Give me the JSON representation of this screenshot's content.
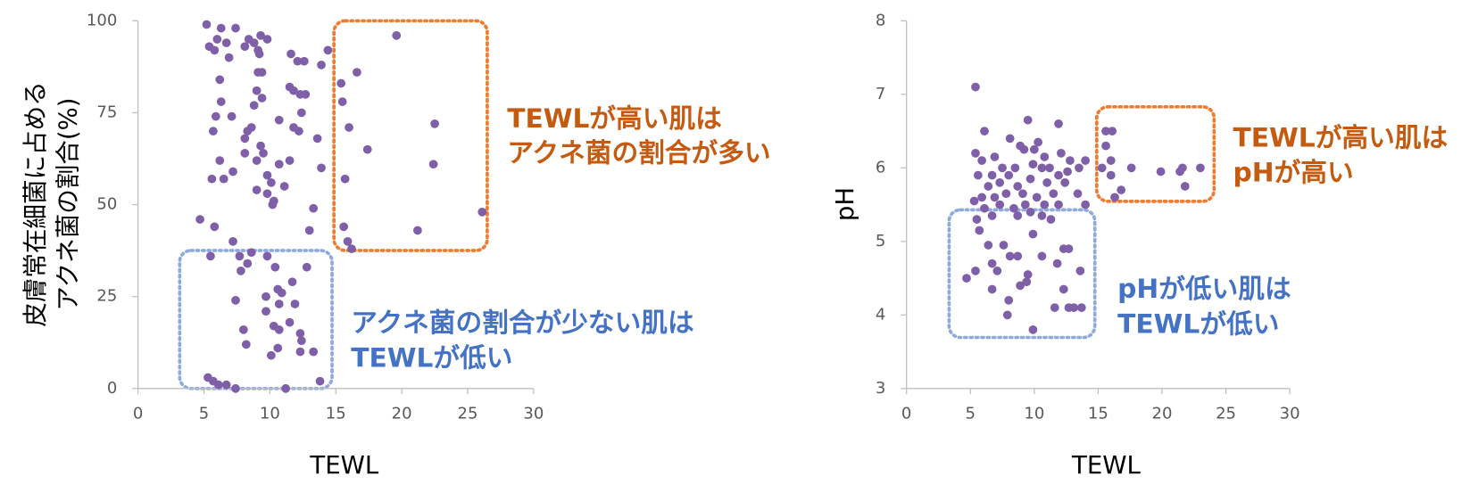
{
  "chart_data": [
    {
      "type": "scatter",
      "xlabel": "TEWL",
      "ylabel": [
        "皮膚常在細菌に占める",
        "アクネ菌の割合(%)"
      ],
      "color": "#7f5fa8",
      "xlim": [
        0,
        30
      ],
      "xticks": [
        0,
        5,
        10,
        15,
        20,
        25,
        30
      ],
      "ylim": [
        0,
        100
      ],
      "yticks": [
        0,
        25,
        50,
        75,
        100
      ],
      "x": [
        5.2,
        6.3,
        7.4,
        6.0,
        6.7,
        5.4,
        5.8,
        8.4,
        8.8,
        9.3,
        9.8,
        8.1,
        9.1,
        9.2,
        11.6,
        12.1,
        12.6,
        6.9,
        6.2,
        9.1,
        9.4,
        14.4,
        13.9,
        11.5,
        11.8,
        12.3,
        12.7,
        9.0,
        9.4,
        8.8,
        6.3,
        7.1,
        5.9,
        12.4,
        11.8,
        12.2,
        10.7,
        8.3,
        8.1,
        8.6,
        5.7,
        13.6,
        9.3,
        9.5,
        8.1,
        6.2,
        9.0,
        10.7,
        11.5,
        13.9,
        7.2,
        6.5,
        5.6,
        9.8,
        10.1,
        11.1,
        9.0,
        9.8,
        10.3,
        10.2,
        13.3,
        4.7,
        13.0,
        5.8,
        15.4,
        15.5,
        16.6,
        19.6,
        16.0,
        22.5,
        17.4,
        22.4,
        15.7,
        15.6,
        15.9,
        16.2,
        21.2,
        26.1,
        7.2,
        5.5,
        7.7,
        8.6,
        9.8,
        8.3,
        7.8,
        10.4,
        12.8,
        11.7,
        10.6,
        10.9,
        9.7,
        10.7,
        7.4,
        11.9,
        9.7,
        11.5,
        12.3,
        8.0,
        10.3,
        10.7,
        8.2,
        10.6,
        12.4,
        12.3,
        13.3,
        10.1,
        5.3,
        5.7,
        6.1,
        6.7,
        7.4,
        11.2,
        13.8
      ],
      "y": [
        99,
        98,
        98,
        95,
        94,
        93,
        92,
        95,
        94,
        96,
        95,
        93,
        92,
        91,
        91,
        89,
        89,
        90,
        84,
        86,
        86,
        92,
        88,
        82,
        81,
        80,
        80,
        81,
        79,
        77,
        78,
        74,
        74,
        75,
        71,
        70,
        73,
        70,
        68,
        71,
        70,
        68,
        66,
        64,
        64,
        62,
        62,
        61,
        62,
        60,
        59,
        57,
        57,
        58,
        56,
        55,
        54,
        53,
        51,
        50,
        49,
        46,
        43,
        44,
        83,
        78,
        86,
        96,
        71,
        72,
        65,
        61,
        57,
        44,
        40,
        38,
        43,
        48,
        40,
        36,
        36,
        37,
        36,
        34,
        32,
        33,
        33,
        29,
        27,
        26,
        25,
        23,
        24,
        23,
        21,
        18,
        15,
        16,
        17,
        16,
        12,
        11,
        13,
        10,
        10,
        9,
        3,
        2,
        1,
        1,
        0,
        0,
        2
      ],
      "annotations": [
        {
          "lines": [
            "TEWLが高い肌は",
            "アクネ菌の割合が多い"
          ],
          "color": "#c55a11"
        },
        {
          "lines": [
            "アクネ菌の割合が少ない肌は",
            "TEWLが低い"
          ],
          "color": "#4472c4"
        }
      ]
    },
    {
      "type": "scatter",
      "xlabel": "TEWL",
      "ylabel": [
        "pH"
      ],
      "color": "#7f5fa8",
      "xlim": [
        0,
        30
      ],
      "xticks": [
        0,
        5,
        10,
        15,
        20,
        25,
        30
      ],
      "ylim": [
        3,
        8
      ],
      "yticks": [
        3,
        4,
        5,
        6,
        7,
        8
      ],
      "x": [
        5.4,
        6.1,
        8.1,
        9.5,
        11.9,
        5.4,
        5.9,
        6.9,
        8.9,
        9.2,
        10.0,
        10.3,
        10.8,
        12.1,
        12.8,
        13.5,
        14.0,
        5.6,
        6.7,
        7.5,
        8.0,
        8.5,
        9.9,
        10.6,
        11.2,
        11.9,
        12.6,
        6.4,
        7.3,
        8.7,
        9.7,
        11.0,
        12.4,
        5.9,
        6.9,
        7.8,
        9.1,
        10.2,
        11.5,
        13.4,
        5.3,
        7.3,
        8.4,
        9.3,
        10.8,
        11.9,
        14.0,
        6.1,
        9.7,
        10.6,
        5.5,
        6.7,
        8.7,
        11.3,
        5.7,
        9.9,
        7.6,
        6.4,
        12.3,
        12.7,
        8.1,
        8.7,
        10.6,
        6.7,
        11.8,
        5.4,
        4.7,
        7.1,
        9.5,
        13.6,
        9.4,
        8.9,
        6.7,
        12.3,
        8.0,
        11.6,
        12.7,
        13.1,
        13.7,
        7.9,
        9.9,
        15.6,
        16.1,
        15.6,
        16.0,
        15.3,
        17.6,
        16.0,
        19.9,
        21.6,
        21.4,
        23.0,
        21.8,
        16.8,
        16.3
      ],
      "y": [
        7.1,
        6.5,
        6.4,
        6.65,
        6.6,
        6.2,
        6.1,
        6.15,
        6.3,
        6.25,
        6.25,
        6.35,
        6.15,
        6.2,
        6.1,
        6.0,
        6.1,
        5.9,
        5.9,
        6.0,
        5.9,
        6.0,
        6.05,
        6.0,
        6.0,
        5.9,
        5.95,
        5.75,
        5.8,
        5.75,
        5.85,
        5.8,
        5.8,
        5.6,
        5.6,
        5.65,
        5.65,
        5.6,
        5.65,
        5.65,
        5.55,
        5.5,
        5.45,
        5.5,
        5.5,
        5.5,
        5.5,
        5.45,
        5.4,
        5.35,
        5.3,
        5.35,
        5.35,
        5.3,
        5.15,
        5.1,
        4.95,
        4.95,
        4.9,
        4.9,
        4.8,
        4.8,
        4.8,
        4.7,
        4.7,
        4.6,
        4.5,
        4.6,
        4.55,
        4.6,
        4.45,
        4.4,
        4.35,
        4.35,
        4.2,
        4.1,
        4.1,
        4.1,
        4.1,
        4.0,
        3.8,
        6.5,
        6.5,
        6.3,
        6.1,
        6.0,
        6.0,
        5.9,
        5.95,
        6.0,
        5.95,
        6.0,
        5.75,
        5.7,
        5.6
      ],
      "annotations": [
        {
          "lines": [
            "TEWLが高い肌は",
            "pHが高い"
          ],
          "color": "#c55a11"
        },
        {
          "lines": [
            "pHが低い肌は",
            "TEWLが低い"
          ],
          "color": "#4472c4"
        }
      ]
    }
  ]
}
